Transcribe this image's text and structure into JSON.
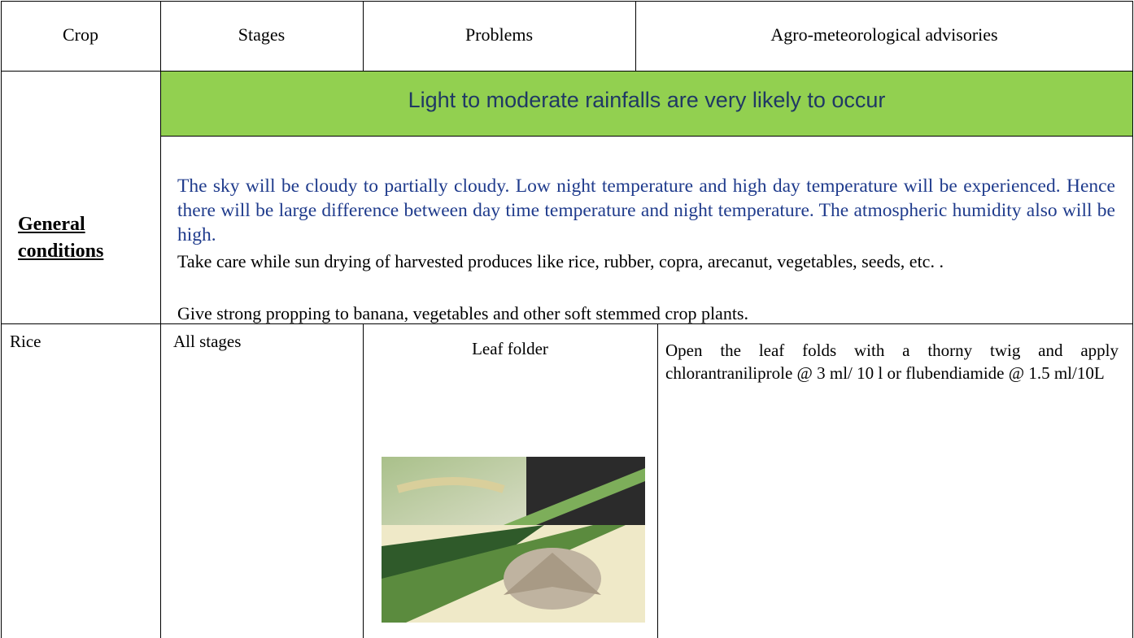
{
  "header": {
    "columns": [
      "Crop",
      "Stages",
      "Problems",
      "Agro-meteorological advisories"
    ]
  },
  "general": {
    "label": "General conditions",
    "headline": "Light to moderate rainfalls are very likely to occur",
    "forecast": "The sky will be cloudy to partially cloudy. Low night temperature and high day temperature will be experienced.  Hence there will be large difference between day time temperature and night temperature. The atmospheric humidity also will be high.",
    "advisories": [
      "Take care while sun drying of harvested produces like rice, rubber, copra, arecanut, vegetables, seeds, etc.  .",
      "Give strong propping to banana, vegetables and other soft stemmed crop plants."
    ]
  },
  "rows": [
    {
      "crop": "Rice",
      "stage": "All stages",
      "problem": "Leaf folder",
      "advisory": "Open the leaf folds with a thorny twig and apply chlorantraniliprole @ 3 ml/ 10 l or flubendiamide @ 1.5 ml/10L"
    }
  ]
}
